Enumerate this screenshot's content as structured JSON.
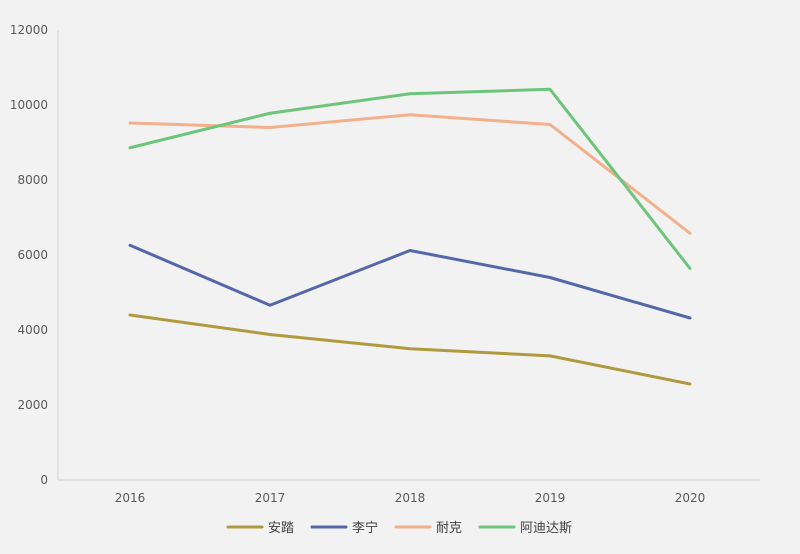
{
  "chart_data": {
    "type": "line",
    "categories": [
      "2016",
      "2017",
      "2018",
      "2019",
      "2020"
    ],
    "ylim": [
      0,
      12000
    ],
    "yticks": [
      0,
      2000,
      4000,
      6000,
      8000,
      10000,
      12000
    ],
    "grid": false,
    "legend_position": "bottom",
    "series": [
      {
        "name": "安踏",
        "color": "#b0993e",
        "values": [
          4400,
          3880,
          3500,
          3310,
          2560
        ]
      },
      {
        "name": "李宁",
        "color": "#5468a8",
        "values": [
          6260,
          4660,
          6120,
          5400,
          4320
        ]
      },
      {
        "name": "耐克",
        "color": "#f2b08c",
        "values": [
          9520,
          9400,
          9740,
          9480,
          6580
        ]
      },
      {
        "name": "阿迪达斯",
        "color": "#6cc57a",
        "values": [
          8860,
          9780,
          10300,
          10420,
          5640
        ]
      }
    ]
  }
}
